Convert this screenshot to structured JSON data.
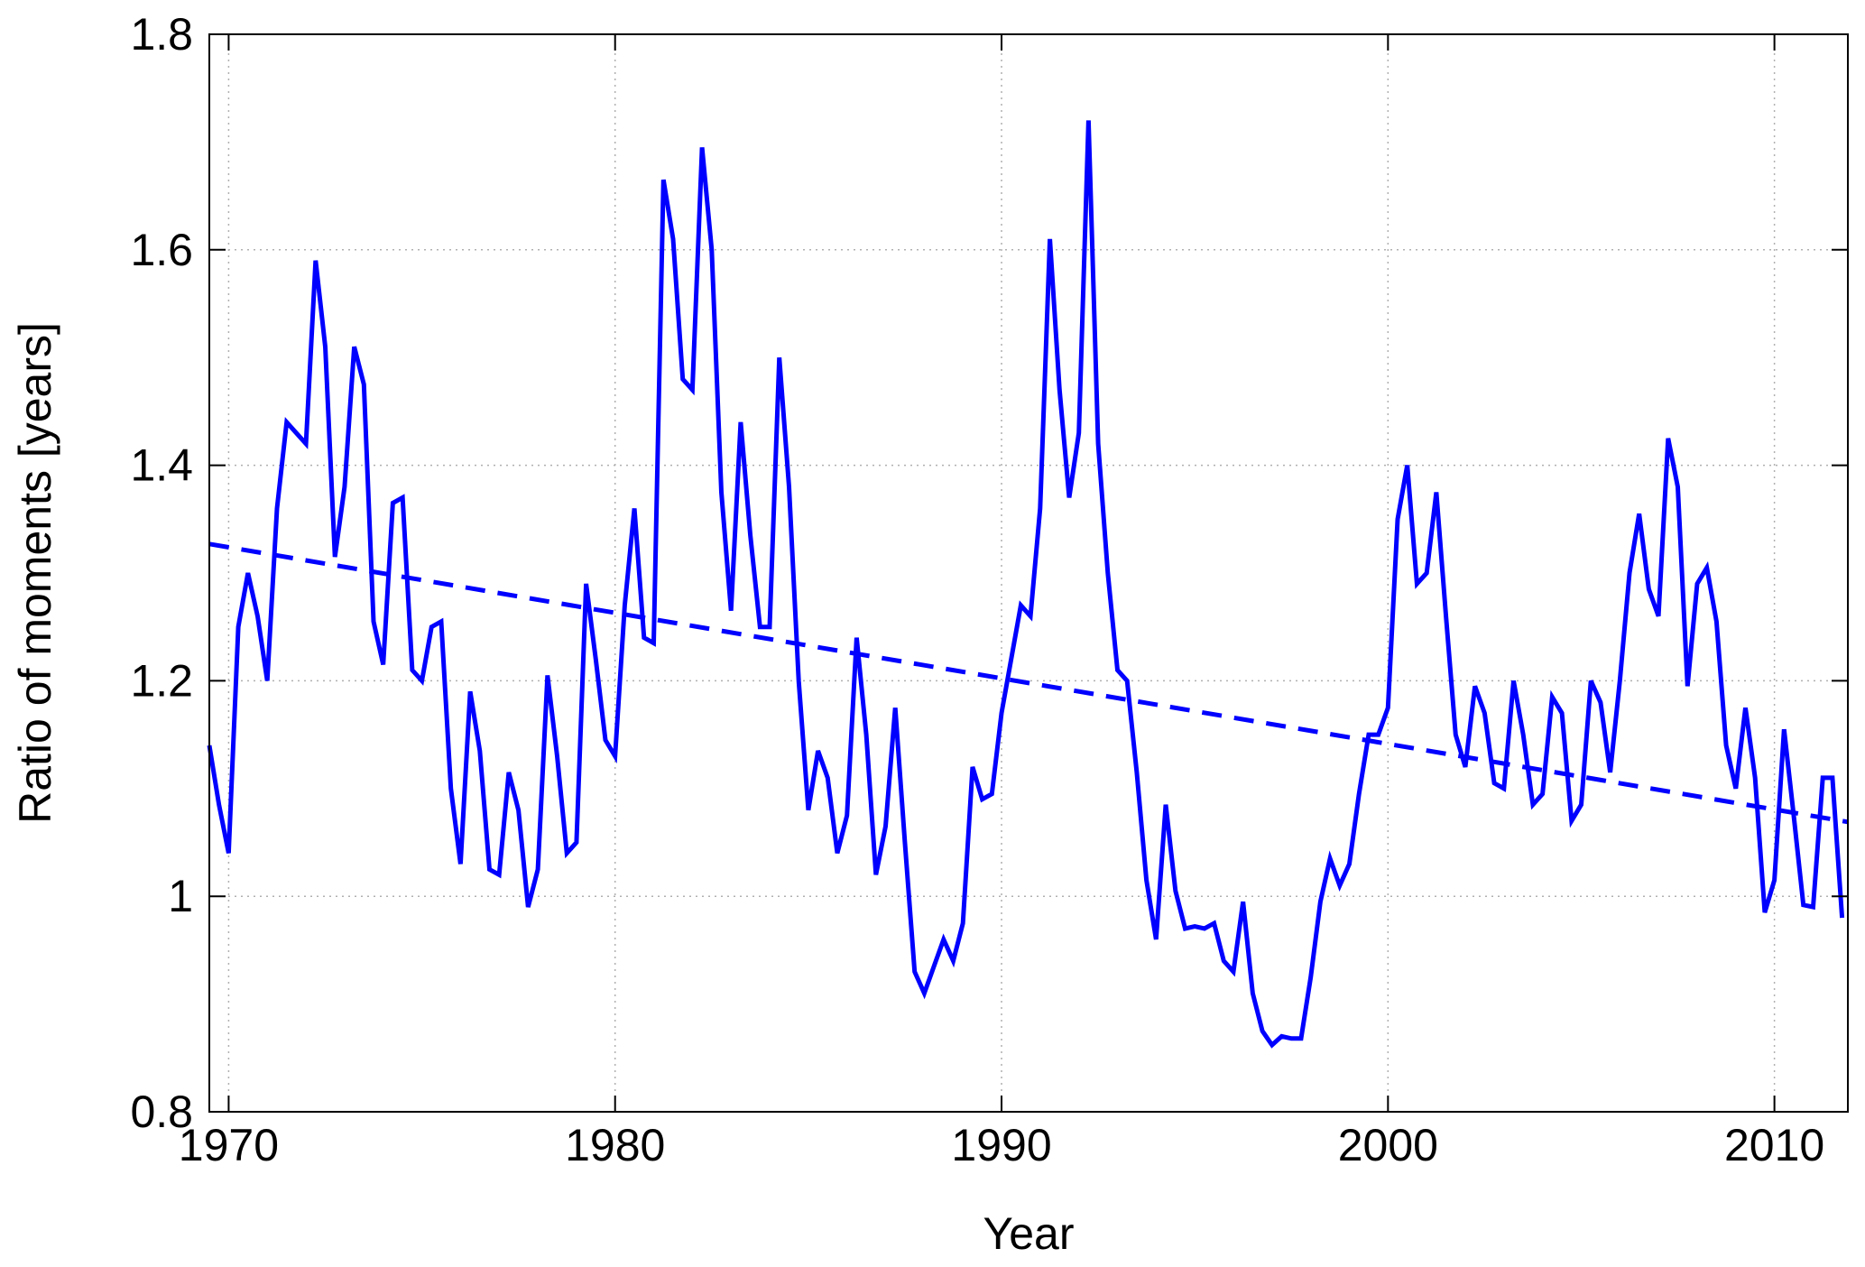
{
  "chart_data": {
    "type": "line",
    "title": "",
    "xlabel": "Year",
    "ylabel": "Ratio of moments [years]",
    "xlim": [
      1969.5,
      2011.9
    ],
    "ylim": [
      0.8,
      1.8
    ],
    "grid": true,
    "x_ticks": [
      1970,
      1980,
      1990,
      2000,
      2010
    ],
    "x_tick_labels": [
      "1970",
      "1980",
      "1990",
      "2000",
      "2010"
    ],
    "y_ticks": [
      0.8,
      1.0,
      1.2,
      1.4,
      1.6,
      1.8
    ],
    "y_tick_labels": [
      "0.8",
      "1",
      "1.2",
      "1.4",
      "1.6",
      "1.8"
    ],
    "colors": {
      "series": "#0000ff",
      "grid": "#b0b0b0",
      "axis": "#000000"
    },
    "series": [
      {
        "style": "solid",
        "x": [
          1969.5,
          1969.75,
          1970.0,
          1970.25,
          1970.5,
          1970.75,
          1971.0,
          1971.25,
          1971.5,
          1971.75,
          1972.0,
          1972.25,
          1972.5,
          1972.75,
          1973.0,
          1973.25,
          1973.5,
          1973.75,
          1974.0,
          1974.25,
          1974.5,
          1974.75,
          1975.0,
          1975.25,
          1975.5,
          1975.75,
          1976.0,
          1976.25,
          1976.5,
          1976.75,
          1977.0,
          1977.25,
          1977.5,
          1977.75,
          1978.0,
          1978.25,
          1978.5,
          1978.75,
          1979.0,
          1979.25,
          1979.5,
          1979.75,
          1980.0,
          1980.25,
          1980.5,
          1980.75,
          1981.0,
          1981.25,
          1981.5,
          1981.75,
          1982.0,
          1982.25,
          1982.5,
          1982.75,
          1983.0,
          1983.25,
          1983.5,
          1983.75,
          1984.0,
          1984.25,
          1984.5,
          1984.75,
          1985.0,
          1985.25,
          1985.5,
          1985.75,
          1986.0,
          1986.25,
          1986.5,
          1986.75,
          1987.0,
          1987.25,
          1987.5,
          1987.75,
          1988.0,
          1988.25,
          1988.5,
          1988.75,
          1989.0,
          1989.25,
          1989.5,
          1989.75,
          1990.0,
          1990.25,
          1990.5,
          1990.75,
          1991.0,
          1991.25,
          1991.5,
          1991.75,
          1992.0,
          1992.25,
          1992.5,
          1992.75,
          1993.0,
          1993.25,
          1993.5,
          1993.75,
          1994.0,
          1994.25,
          1994.5,
          1994.75,
          1995.0,
          1995.25,
          1995.5,
          1995.75,
          1996.0,
          1996.25,
          1996.5,
          1996.75,
          1997.0,
          1997.25,
          1997.5,
          1997.75,
          1998.0,
          1998.25,
          1998.5,
          1998.75,
          1999.0,
          1999.25,
          1999.5,
          1999.75,
          2000.0,
          2000.25,
          2000.5,
          2000.75,
          2001.0,
          2001.25,
          2001.5,
          2001.75,
          2002.0,
          2002.25,
          2002.5,
          2002.75,
          2003.0,
          2003.25,
          2003.5,
          2003.75,
          2004.0,
          2004.25,
          2004.5,
          2004.75,
          2005.0,
          2005.25,
          2005.5,
          2005.75,
          2006.0,
          2006.25,
          2006.5,
          2006.75,
          2007.0,
          2007.25,
          2007.5,
          2007.75,
          2008.0,
          2008.25,
          2008.5,
          2008.75,
          2009.0,
          2009.25,
          2009.5,
          2009.75,
          2010.0,
          2010.25,
          2010.5,
          2010.75,
          2011.0,
          2011.25,
          2011.5,
          2011.75
        ],
        "y": [
          1.14,
          1.085,
          1.04,
          1.25,
          1.3,
          1.26,
          1.2,
          1.36,
          1.44,
          1.43,
          1.42,
          1.59,
          1.51,
          1.315,
          1.38,
          1.51,
          1.475,
          1.255,
          1.215,
          1.365,
          1.37,
          1.21,
          1.2,
          1.25,
          1.255,
          1.1,
          1.03,
          1.19,
          1.135,
          1.025,
          1.02,
          1.115,
          1.08,
          0.99,
          1.025,
          1.205,
          1.13,
          1.04,
          1.05,
          1.29,
          1.22,
          1.145,
          1.13,
          1.27,
          1.36,
          1.24,
          1.235,
          1.665,
          1.61,
          1.48,
          1.47,
          1.695,
          1.6,
          1.375,
          1.265,
          1.44,
          1.335,
          1.25,
          1.25,
          1.5,
          1.38,
          1.2,
          1.08,
          1.135,
          1.11,
          1.04,
          1.075,
          1.24,
          1.15,
          1.02,
          1.065,
          1.175,
          1.05,
          0.93,
          0.91,
          0.935,
          0.96,
          0.94,
          0.975,
          1.12,
          1.09,
          1.095,
          1.17,
          1.22,
          1.27,
          1.26,
          1.36,
          1.61,
          1.47,
          1.37,
          1.43,
          1.72,
          1.42,
          1.3,
          1.21,
          1.2,
          1.115,
          1.015,
          0.96,
          1.085,
          1.005,
          0.97,
          0.972,
          0.97,
          0.975,
          0.94,
          0.93,
          0.995,
          0.91,
          0.875,
          0.862,
          0.87,
          0.868,
          0.868,
          0.925,
          0.995,
          1.035,
          1.01,
          1.03,
          1.095,
          1.15,
          1.15,
          1.175,
          1.35,
          1.4,
          1.29,
          1.3,
          1.375,
          1.26,
          1.15,
          1.12,
          1.195,
          1.17,
          1.105,
          1.1,
          1.2,
          1.15,
          1.085,
          1.095,
          1.185,
          1.17,
          1.07,
          1.085,
          1.2,
          1.18,
          1.115,
          1.2,
          1.3,
          1.355,
          1.285,
          1.26,
          1.425,
          1.38,
          1.195,
          1.29,
          1.305,
          1.255,
          1.14,
          1.1,
          1.175,
          1.11,
          0.985,
          1.015,
          1.155,
          1.075,
          0.992,
          0.99,
          1.11,
          1.11,
          0.98
        ]
      },
      {
        "style": "dashed",
        "x": [
          1969.5,
          2011.9
        ],
        "y": [
          1.327,
          1.069
        ]
      }
    ]
  }
}
